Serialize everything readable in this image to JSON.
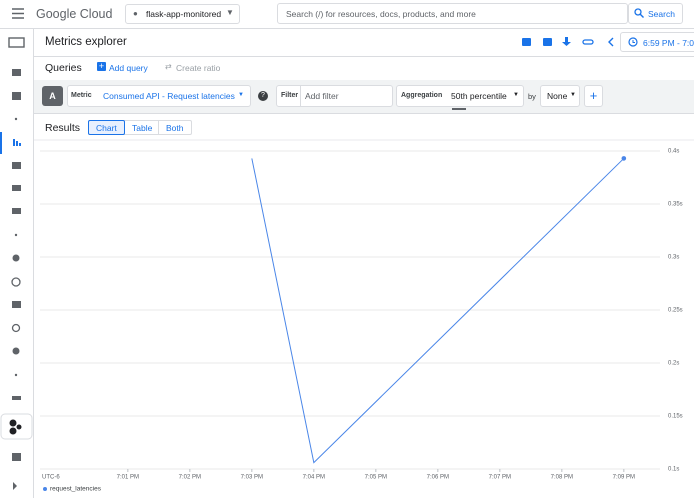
{
  "topbar": {
    "logo": "Google Cloud",
    "project": "flask-app-monitored",
    "search_placeholder": "Search (/) for resources, docs, products, and more",
    "search_button": "Search"
  },
  "page_title": "Metrics explorer",
  "time_range": "6:59 PM - 7:0",
  "queries": {
    "title": "Queries",
    "add_query": "Add query",
    "create_ratio": "Create ratio"
  },
  "query": {
    "letter": "A",
    "metric_label": "Metric",
    "metric": "Consumed API - Request latencies",
    "filter_label": "Filter",
    "filter_placeholder": "Add filter",
    "aggregation_label": "Aggregation",
    "aggregation": "50th percentile",
    "by_label": "by",
    "group_by": "None"
  },
  "results": {
    "title": "Results",
    "tabs": [
      "Chart",
      "Table",
      "Both"
    ]
  },
  "chart_data": {
    "type": "line",
    "timezone_label": "UTC-6",
    "x": [
      "7:03 PM",
      "7:04 PM",
      "7:09 PM"
    ],
    "series": [
      {
        "name": "request_latencies",
        "color": "#4a86e8",
        "values": [
          0.393,
          0.106,
          0.393
        ]
      }
    ],
    "xlim": [
      "6:59:35 PM",
      "7:09:35 PM"
    ],
    "xticks": [
      "7:01 PM",
      "7:02 PM",
      "7:03 PM",
      "7:04 PM",
      "7:05 PM",
      "7:06 PM",
      "7:07 PM",
      "7:08 PM",
      "7:09 PM"
    ],
    "ylim": [
      0.1,
      0.4
    ],
    "yticks": [
      {
        "value": 0.1,
        "label": "0.1s"
      },
      {
        "value": 0.15,
        "label": "0.15s"
      },
      {
        "value": 0.2,
        "label": "0.2s"
      },
      {
        "value": 0.25,
        "label": "0.25s"
      },
      {
        "value": 0.3,
        "label": "0.3s"
      },
      {
        "value": 0.35,
        "label": "0.35s"
      },
      {
        "value": 0.4,
        "label": "0.4s"
      }
    ],
    "grid": true
  }
}
